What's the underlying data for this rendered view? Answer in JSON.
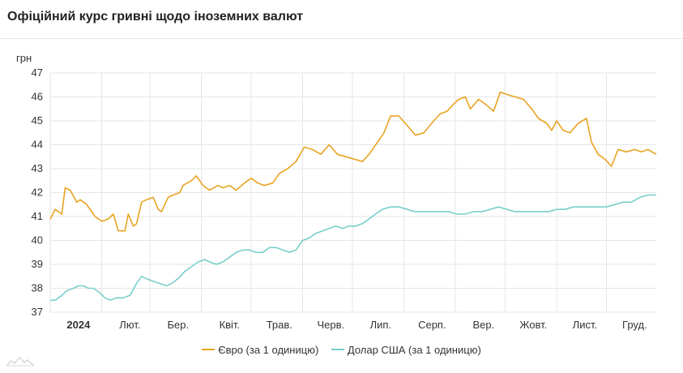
{
  "header": {
    "title": "Офіційний курс гривні щодо іноземних валют"
  },
  "colors": {
    "euro": "#e8a322",
    "usd": "#79cfcb",
    "grid": "#e6e6e6"
  },
  "chart_data": {
    "type": "line",
    "ylabel": "грн",
    "ylim": [
      37,
      47
    ],
    "yticks": [
      37,
      38,
      39,
      40,
      41,
      42,
      43,
      44,
      45,
      46,
      47
    ],
    "xlim": [
      0,
      365
    ],
    "xticks": [
      {
        "label": "2024",
        "x": 17,
        "bold": true
      },
      {
        "label": "Лют.",
        "x": 48
      },
      {
        "label": "Бер.",
        "x": 77
      },
      {
        "label": "Квіт.",
        "x": 108
      },
      {
        "label": "Трав.",
        "x": 138
      },
      {
        "label": "Черв.",
        "x": 169
      },
      {
        "label": "Лип.",
        "x": 199
      },
      {
        "label": "Серп.",
        "x": 230
      },
      {
        "label": "Вер.",
        "x": 261
      },
      {
        "label": "Жовт.",
        "x": 291
      },
      {
        "label": "Лист.",
        "x": 322
      },
      {
        "label": "Груд.",
        "x": 352
      }
    ],
    "gridlines_x": [
      0,
      31,
      60,
      91,
      121,
      152,
      182,
      213,
      244,
      274,
      305,
      335
    ],
    "series": [
      {
        "name": "Євро (за 1 одиницю)",
        "x": [
          0,
          3,
          7,
          9,
          12,
          16,
          18,
          22,
          27,
          31,
          35,
          38,
          41,
          45,
          47,
          50,
          52,
          55,
          58,
          62,
          65,
          67,
          71,
          74,
          78,
          80,
          85,
          88,
          92,
          96,
          101,
          104,
          108,
          112,
          117,
          121,
          125,
          129,
          134,
          138,
          143,
          148,
          153,
          158,
          163,
          168,
          173,
          178,
          183,
          188,
          192,
          196,
          201,
          205,
          210,
          215,
          220,
          225,
          231,
          235,
          239,
          243,
          246,
          250,
          253,
          258,
          262,
          267,
          271,
          275,
          280,
          285,
          290,
          294,
          299,
          302,
          305,
          309,
          313,
          318,
          323,
          326,
          330,
          334,
          338,
          342,
          347,
          352,
          356,
          360,
          365
        ],
        "values": [
          40.9,
          41.3,
          41.1,
          42.2,
          42.1,
          41.6,
          41.7,
          41.5,
          41.0,
          40.8,
          40.9,
          41.1,
          40.4,
          40.4,
          41.1,
          40.6,
          40.7,
          41.6,
          41.7,
          41.8,
          41.3,
          41.2,
          41.8,
          41.9,
          42.0,
          42.3,
          42.5,
          42.7,
          42.3,
          42.1,
          42.3,
          42.2,
          42.3,
          42.1,
          42.4,
          42.6,
          42.4,
          42.3,
          42.4,
          42.8,
          43.0,
          43.3,
          43.9,
          43.8,
          43.6,
          44.0,
          43.6,
          43.5,
          43.4,
          43.3,
          43.6,
          44.0,
          44.5,
          45.2,
          45.2,
          44.8,
          44.4,
          44.5,
          45.0,
          45.3,
          45.4,
          45.7,
          45.9,
          46.0,
          45.5,
          45.9,
          45.7,
          45.4,
          46.2,
          46.1,
          46.0,
          45.9,
          45.5,
          45.1,
          44.9,
          44.6,
          45.0,
          44.6,
          44.5,
          44.9,
          45.1,
          44.1,
          43.6,
          43.4,
          43.1,
          43.8,
          43.7,
          43.8,
          43.7,
          43.8,
          43.6
        ]
      },
      {
        "name": "Долар США (за 1 одиницю)",
        "x": [
          0,
          3,
          7,
          10,
          14,
          17,
          20,
          23,
          26,
          30,
          33,
          36,
          40,
          44,
          48,
          52,
          55,
          58,
          62,
          66,
          70,
          73,
          77,
          81,
          85,
          89,
          93,
          96,
          100,
          104,
          108,
          112,
          116,
          120,
          124,
          128,
          132,
          136,
          140,
          144,
          148,
          152,
          156,
          160,
          164,
          168,
          172,
          176,
          180,
          184,
          188,
          192,
          196,
          200,
          205,
          210,
          215,
          220,
          225,
          230,
          235,
          240,
          245,
          250,
          255,
          260,
          265,
          270,
          275,
          280,
          285,
          290,
          295,
          300,
          305,
          310,
          315,
          320,
          325,
          330,
          335,
          340,
          345,
          350,
          355,
          360,
          365
        ],
        "values": [
          37.5,
          37.5,
          37.7,
          37.9,
          38.0,
          38.1,
          38.1,
          38.0,
          38.0,
          37.8,
          37.6,
          37.5,
          37.6,
          37.6,
          37.7,
          38.2,
          38.5,
          38.4,
          38.3,
          38.2,
          38.1,
          38.2,
          38.4,
          38.7,
          38.9,
          39.1,
          39.2,
          39.1,
          39.0,
          39.1,
          39.3,
          39.5,
          39.6,
          39.6,
          39.5,
          39.5,
          39.7,
          39.7,
          39.6,
          39.5,
          39.6,
          40.0,
          40.1,
          40.3,
          40.4,
          40.5,
          40.6,
          40.5,
          40.6,
          40.6,
          40.7,
          40.9,
          41.1,
          41.3,
          41.4,
          41.4,
          41.3,
          41.2,
          41.2,
          41.2,
          41.2,
          41.2,
          41.1,
          41.1,
          41.2,
          41.2,
          41.3,
          41.4,
          41.3,
          41.2,
          41.2,
          41.2,
          41.2,
          41.2,
          41.3,
          41.3,
          41.4,
          41.4,
          41.4,
          41.4,
          41.4,
          41.5,
          41.6,
          41.6,
          41.8,
          41.9,
          41.9
        ]
      }
    ]
  }
}
